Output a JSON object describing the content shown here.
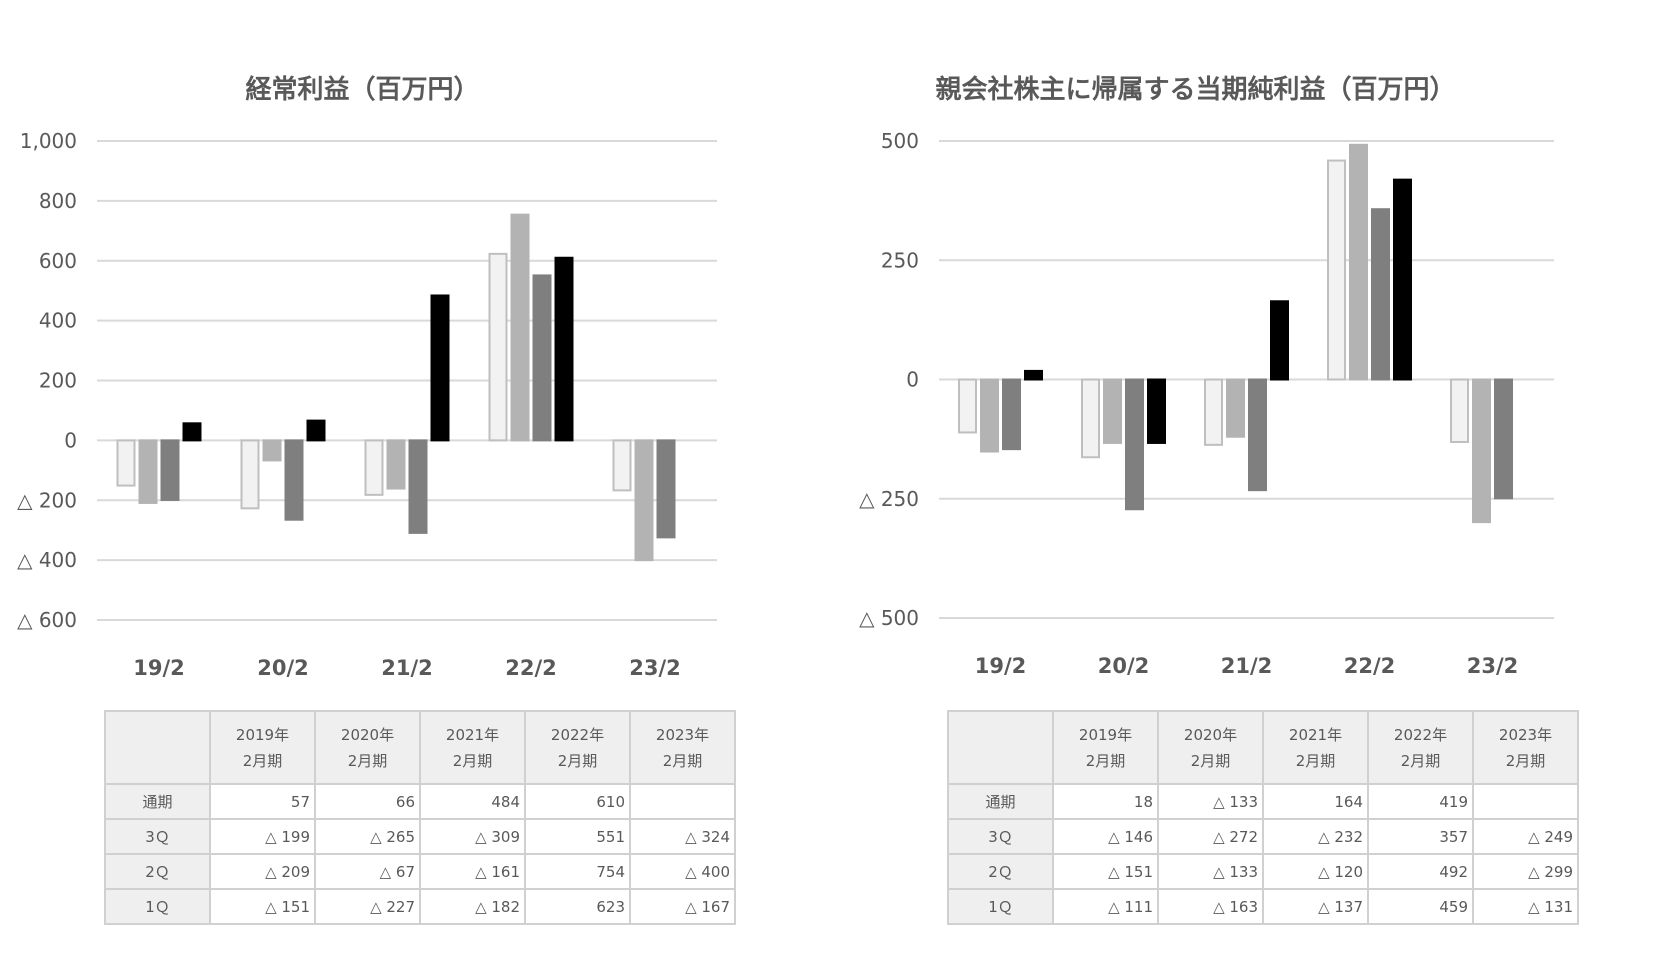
{
  "chart_data": [
    {
      "type": "bar",
      "title": "経常利益（百万円）",
      "categories": [
        "19/2",
        "20/2",
        "21/2",
        "22/2",
        "23/2"
      ],
      "ylim": [
        -600,
        1000
      ],
      "yticks": [
        1000,
        800,
        600,
        400,
        200,
        0,
        -200,
        -400,
        -600
      ],
      "ytick_labels": [
        "1,000",
        "800",
        "600",
        "400",
        "200",
        "0",
        "△ 200",
        "△ 400",
        "△ 600"
      ],
      "grid": true,
      "series": [
        {
          "name": "1Q",
          "color": "#f2f2f2",
          "border": "#bfbfbf",
          "values": [
            -151,
            -227,
            -182,
            623,
            -167
          ]
        },
        {
          "name": "2Q",
          "color": "#b3b3b3",
          "border": "#b3b3b3",
          "values": [
            -209,
            -67,
            -161,
            754,
            -400
          ]
        },
        {
          "name": "3Q",
          "color": "#7f7f7f",
          "border": "#7f7f7f",
          "values": [
            -199,
            -265,
            -309,
            551,
            -324
          ]
        },
        {
          "name": "通期",
          "color": "#000000",
          "border": "#000000",
          "values": [
            57,
            66,
            484,
            610,
            null
          ]
        }
      ],
      "table": {
        "columns": [
          {
            "year": "2019年",
            "period": "2月期"
          },
          {
            "year": "2020年",
            "period": "2月期"
          },
          {
            "year": "2021年",
            "period": "2月期"
          },
          {
            "year": "2022年",
            "period": "2月期"
          },
          {
            "year": "2023年",
            "period": "2月期"
          }
        ],
        "rows": [
          {
            "label": "通期",
            "cells": [
              "57",
              "66",
              "484",
              "610",
              ""
            ]
          },
          {
            "label": "3Ｑ",
            "cells": [
              "△ 199",
              "△ 265",
              "△ 309",
              "551",
              "△ 324"
            ]
          },
          {
            "label": "2Ｑ",
            "cells": [
              "△ 209",
              "△ 67",
              "△ 161",
              "754",
              "△ 400"
            ]
          },
          {
            "label": "1Ｑ",
            "cells": [
              "△ 151",
              "△ 227",
              "△ 182",
              "623",
              "△ 167"
            ]
          }
        ]
      }
    },
    {
      "type": "bar",
      "title": "親会社株主に帰属する当期純利益（百万円）",
      "categories": [
        "19/2",
        "20/2",
        "21/2",
        "22/2",
        "23/2"
      ],
      "ylim": [
        -500,
        500
      ],
      "yticks": [
        500,
        250,
        0,
        -250,
        -500
      ],
      "ytick_labels": [
        "500",
        "250",
        "0",
        "△ 250",
        "△ 500"
      ],
      "grid": true,
      "series": [
        {
          "name": "1Q",
          "color": "#f2f2f2",
          "border": "#bfbfbf",
          "values": [
            -111,
            -163,
            -137,
            459,
            -131
          ]
        },
        {
          "name": "2Q",
          "color": "#b3b3b3",
          "border": "#b3b3b3",
          "values": [
            -151,
            -133,
            -120,
            492,
            -299
          ]
        },
        {
          "name": "3Q",
          "color": "#7f7f7f",
          "border": "#7f7f7f",
          "values": [
            -146,
            -272,
            -232,
            357,
            -249
          ]
        },
        {
          "name": "通期",
          "color": "#000000",
          "border": "#000000",
          "values": [
            18,
            -133,
            164,
            419,
            null
          ]
        }
      ],
      "table": {
        "columns": [
          {
            "year": "2019年",
            "period": "2月期"
          },
          {
            "year": "2020年",
            "period": "2月期"
          },
          {
            "year": "2021年",
            "period": "2月期"
          },
          {
            "year": "2022年",
            "period": "2月期"
          },
          {
            "year": "2023年",
            "period": "2月期"
          }
        ],
        "rows": [
          {
            "label": "通期",
            "cells": [
              "18",
              "△ 133",
              "164",
              "419",
              ""
            ]
          },
          {
            "label": "3Ｑ",
            "cells": [
              "△ 146",
              "△ 272",
              "△ 232",
              "357",
              "△ 249"
            ]
          },
          {
            "label": "2Ｑ",
            "cells": [
              "△ 151",
              "△ 133",
              "△ 120",
              "492",
              "△ 299"
            ]
          },
          {
            "label": "1Ｑ",
            "cells": [
              "△ 111",
              "△ 163",
              "△ 137",
              "459",
              "△ 131"
            ]
          }
        ]
      }
    }
  ]
}
